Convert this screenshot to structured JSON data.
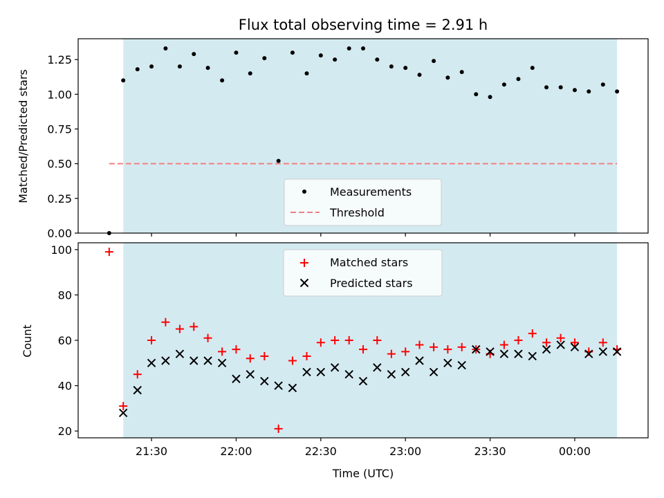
{
  "chart_data": [
    {
      "type": "scatter",
      "title": "Flux total observing time = 2.91 h",
      "xlabel": "",
      "ylabel": "Matched/Predicted stars",
      "xlim": [
        21.0667,
        24.4333
      ],
      "ylim": [
        0.0,
        1.4
      ],
      "yticks": [
        "0.00",
        "0.25",
        "0.50",
        "0.75",
        "1.00",
        "1.25"
      ],
      "ytick_values": [
        0.0,
        0.25,
        0.5,
        0.75,
        1.0,
        1.25
      ],
      "shaded_span": [
        21.3333,
        24.25
      ],
      "shaded_color": "#d4eaf1",
      "threshold": {
        "name": "Threshold",
        "value": 0.5,
        "x_range": [
          21.25,
          24.25
        ],
        "color": "#f08080"
      },
      "legend": {
        "placement": "lower center",
        "entries": [
          "Measurements",
          "Threshold"
        ]
      },
      "series": [
        {
          "name": "Measurements",
          "color": "#000000",
          "x": [
            21.25,
            21.333,
            21.417,
            21.5,
            21.583,
            21.667,
            21.75,
            21.833,
            21.917,
            22.0,
            22.083,
            22.167,
            22.25,
            22.333,
            22.417,
            22.5,
            22.583,
            22.667,
            22.75,
            22.833,
            22.917,
            23.0,
            23.083,
            23.167,
            23.25,
            23.333,
            23.417,
            23.5,
            23.583,
            23.667,
            23.75,
            23.833,
            23.917,
            24.0,
            24.083,
            24.167,
            24.25
          ],
          "y": [
            0.0,
            1.1,
            1.18,
            1.2,
            1.33,
            1.2,
            1.29,
            1.19,
            1.1,
            1.3,
            1.15,
            1.26,
            0.52,
            1.3,
            1.15,
            1.28,
            1.25,
            1.33,
            1.33,
            1.25,
            1.2,
            1.19,
            1.14,
            1.24,
            1.12,
            1.16,
            1.0,
            0.98,
            1.07,
            1.11,
            1.19,
            1.05,
            1.05,
            1.03,
            1.02,
            1.07,
            1.02
          ]
        }
      ]
    },
    {
      "type": "scatter",
      "xlabel": "Time (UTC)",
      "ylabel": "Count",
      "xlim": [
        21.0667,
        24.4333
      ],
      "ylim": [
        17,
        103
      ],
      "xticks": [
        "21:30",
        "22:00",
        "22:30",
        "23:00",
        "23:30",
        "00:00"
      ],
      "xtick_values": [
        21.5,
        22.0,
        22.5,
        23.0,
        23.5,
        24.0
      ],
      "yticks": [
        "20",
        "40",
        "60",
        "80",
        "100"
      ],
      "ytick_values": [
        20,
        40,
        60,
        80,
        100
      ],
      "shaded_span": [
        21.3333,
        24.25
      ],
      "legend": {
        "placement": "upper center",
        "entries": [
          "Matched stars",
          "Predicted stars"
        ]
      },
      "series": [
        {
          "name": "Matched stars",
          "marker": "+",
          "color": "#ff0000",
          "x": [
            21.25,
            21.333,
            21.417,
            21.5,
            21.583,
            21.667,
            21.75,
            21.833,
            21.917,
            22.0,
            22.083,
            22.167,
            22.25,
            22.333,
            22.417,
            22.5,
            22.583,
            22.667,
            22.75,
            22.833,
            22.917,
            23.0,
            23.083,
            23.167,
            23.25,
            23.333,
            23.417,
            23.5,
            23.583,
            23.667,
            23.75,
            23.833,
            23.917,
            24.0,
            24.083,
            24.167,
            24.25
          ],
          "y": [
            99,
            31,
            45,
            60,
            68,
            65,
            66,
            61,
            55,
            56,
            52,
            53,
            21,
            51,
            53,
            59,
            60,
            60,
            56,
            60,
            54,
            55,
            58,
            57,
            56,
            57,
            56,
            54,
            58,
            60,
            63,
            59,
            61,
            59,
            55,
            59,
            56
          ]
        },
        {
          "name": "Predicted stars",
          "marker": "x",
          "color": "#000000",
          "x": [
            21.333,
            21.417,
            21.5,
            21.583,
            21.667,
            21.75,
            21.833,
            21.917,
            22.0,
            22.083,
            22.167,
            22.25,
            22.333,
            22.417,
            22.5,
            22.583,
            22.667,
            22.75,
            22.833,
            22.917,
            23.0,
            23.083,
            23.167,
            23.25,
            23.333,
            23.417,
            23.5,
            23.583,
            23.667,
            23.75,
            23.833,
            23.917,
            24.0,
            24.083,
            24.167,
            24.25
          ],
          "y": [
            28,
            38,
            50,
            51,
            54,
            51,
            51,
            50,
            43,
            45,
            42,
            40,
            39,
            46,
            46,
            48,
            45,
            42,
            48,
            45,
            46,
            51,
            46,
            50,
            49,
            56,
            55,
            54,
            54,
            53,
            56,
            58,
            57,
            54,
            55,
            55
          ]
        }
      ]
    }
  ]
}
